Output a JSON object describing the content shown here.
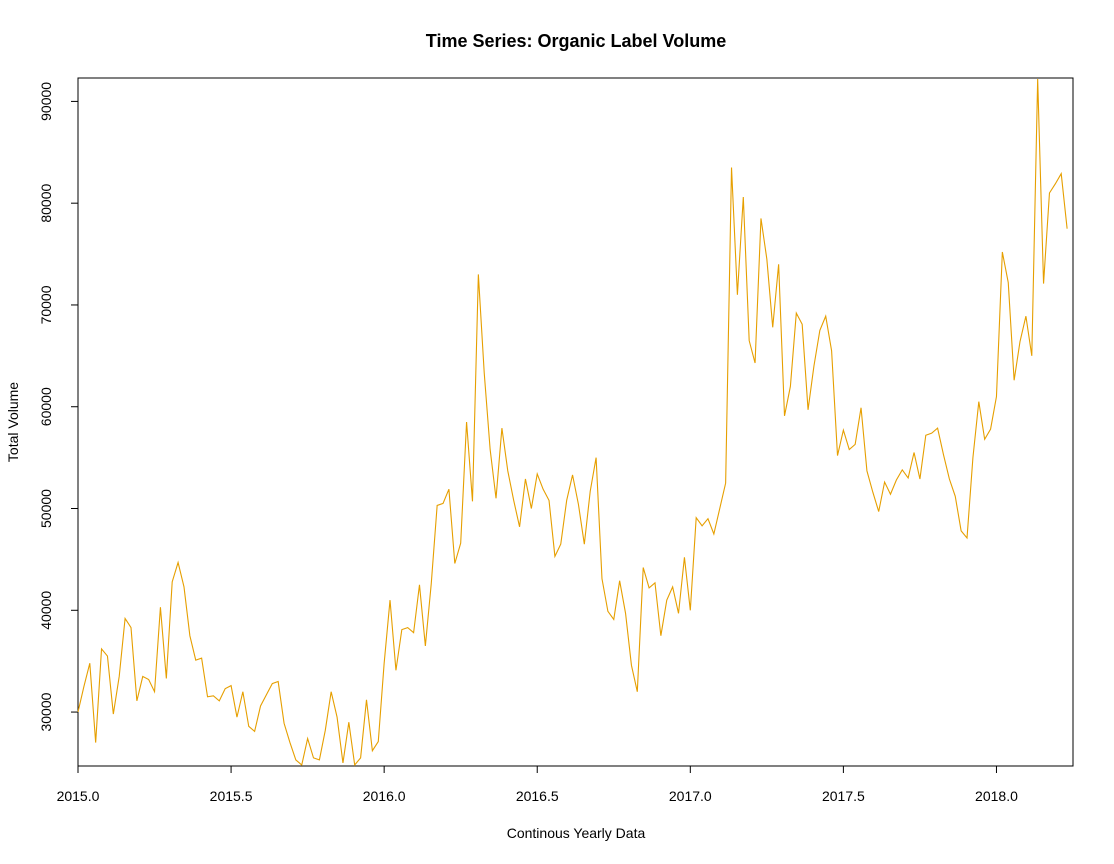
{
  "chart_data": {
    "type": "line",
    "title": "Time Series: Organic Label Volume",
    "xlabel": "Continous Yearly Data",
    "ylabel": "Total Volume",
    "xlim": [
      2015.0,
      2018.25
    ],
    "ylim": [
      24700,
      92300
    ],
    "x_ticks": [
      2015.0,
      2015.5,
      2016.0,
      2016.5,
      2017.0,
      2017.5,
      2018.0
    ],
    "x_tick_labels": [
      "2015.0",
      "2015.5",
      "2016.0",
      "2016.5",
      "2017.0",
      "2017.5",
      "2018.0"
    ],
    "y_ticks": [
      30000,
      40000,
      50000,
      60000,
      70000,
      80000,
      90000
    ],
    "y_tick_labels": [
      "30000",
      "40000",
      "50000",
      "60000",
      "70000",
      "80000",
      "90000"
    ],
    "grid": false,
    "line_color": "#E69F00",
    "series": [
      {
        "x": [
          2015.0,
          2015.0192,
          2015.0385,
          2015.0577,
          2015.0769,
          2015.0962,
          2015.1154,
          2015.1346,
          2015.1538,
          2015.1731,
          2015.1923,
          2015.2115,
          2015.2308,
          2015.25,
          2015.2692,
          2015.2885,
          2015.3077,
          2015.3269,
          2015.3462,
          2015.3654,
          2015.3846,
          2015.4038,
          2015.4231,
          2015.4423,
          2015.4615,
          2015.4808,
          2015.5,
          2015.5192,
          2015.5385,
          2015.5577,
          2015.5769,
          2015.5962,
          2015.6154,
          2015.6346,
          2015.6538,
          2015.6731,
          2015.6923,
          2015.7115,
          2015.7308,
          2015.75,
          2015.7692,
          2015.7885,
          2015.8077,
          2015.8269,
          2015.8462,
          2015.8654,
          2015.8846,
          2015.9038,
          2015.9231,
          2015.9423,
          2015.9615,
          2015.9808,
          2016.0,
          2016.0192,
          2016.0385,
          2016.0577,
          2016.0769,
          2016.0962,
          2016.1154,
          2016.1346,
          2016.1538,
          2016.1731,
          2016.1923,
          2016.2115,
          2016.2308,
          2016.25,
          2016.2692,
          2016.2885,
          2016.3077,
          2016.3269,
          2016.3462,
          2016.3654,
          2016.3846,
          2016.4038,
          2016.4231,
          2016.4423,
          2016.4615,
          2016.4808,
          2016.5,
          2016.5192,
          2016.5385,
          2016.5577,
          2016.5769,
          2016.5962,
          2016.6154,
          2016.6346,
          2016.6538,
          2016.6731,
          2016.6923,
          2016.7115,
          2016.7308,
          2016.75,
          2016.7692,
          2016.7885,
          2016.8077,
          2016.8269,
          2016.8462,
          2016.8654,
          2016.8846,
          2016.9038,
          2016.9231,
          2016.9423,
          2016.9615,
          2016.9808,
          2017.0,
          2017.0192,
          2017.0385,
          2017.0577,
          2017.0769,
          2017.0962,
          2017.1154,
          2017.1346,
          2017.1538,
          2017.1731,
          2017.1923,
          2017.2115,
          2017.2308,
          2017.25,
          2017.2692,
          2017.2885,
          2017.3077,
          2017.3269,
          2017.3462,
          2017.3654,
          2017.3846,
          2017.4038,
          2017.4231,
          2017.4423,
          2017.4615,
          2017.4808,
          2017.5,
          2017.5192,
          2017.5385,
          2017.5577,
          2017.5769,
          2017.5962,
          2017.6154,
          2017.6346,
          2017.6538,
          2017.6731,
          2017.6923,
          2017.7115,
          2017.7308,
          2017.75,
          2017.7692,
          2017.7885,
          2017.8077,
          2017.8269,
          2017.8462,
          2017.8654,
          2017.8846,
          2017.9038,
          2017.9231,
          2017.9423,
          2017.9615,
          2017.9808,
          2018.0,
          2018.0192,
          2018.0385,
          2018.0577,
          2018.0769,
          2018.0962,
          2018.1154,
          2018.1346,
          2018.1538,
          2018.1731,
          2018.1923,
          2018.2115,
          2018.2308
        ],
        "y": [
          30000,
          32500,
          34800,
          27000,
          36200,
          35500,
          29800,
          33500,
          39200,
          38300,
          31100,
          33500,
          33200,
          32000,
          40300,
          33300,
          42800,
          44700,
          42300,
          37500,
          35100,
          35300,
          31500,
          31600,
          31100,
          32300,
          32600,
          29500,
          32000,
          28600,
          28100,
          30600,
          31700,
          32800,
          33000,
          28900,
          27000,
          25300,
          24800,
          27400,
          25500,
          25300,
          28200,
          32000,
          29500,
          25000,
          29000,
          24800,
          25500,
          31200,
          26200,
          27100,
          34800,
          41000,
          34100,
          38100,
          38300,
          37800,
          42500,
          36500,
          42600,
          50300,
          50500,
          51900,
          44600,
          46600,
          58500,
          50700,
          73000,
          63300,
          55800,
          51000,
          57900,
          53700,
          50800,
          48200,
          52900,
          50000,
          53400,
          51900,
          50800,
          45300,
          46500,
          50800,
          53300,
          50400,
          46500,
          51700,
          55000,
          43100,
          39900,
          39100,
          42900,
          39700,
          34600,
          32000,
          44200,
          42200,
          42700,
          37500,
          41000,
          42300,
          39700,
          45200,
          40000,
          49100,
          48300,
          49000,
          47500,
          50000,
          52500,
          83500,
          71000,
          80600,
          66500,
          64300,
          78500,
          74500,
          67800,
          74000,
          59100,
          62000,
          69200,
          68100,
          59700,
          64000,
          67500,
          68900,
          65500,
          55200,
          57700,
          55800,
          56300,
          59900,
          53700,
          51600,
          49700,
          52600,
          51400,
          52800,
          53800,
          53000,
          55500,
          52900,
          57200,
          57400,
          57900,
          55300,
          52900,
          51200,
          47800,
          47100,
          55000,
          60500,
          56800,
          57800,
          61000,
          75200,
          72200,
          62600,
          66400,
          68900,
          65000,
          92200,
          72100,
          81000,
          81900,
          82900,
          77500
        ]
      }
    ]
  }
}
